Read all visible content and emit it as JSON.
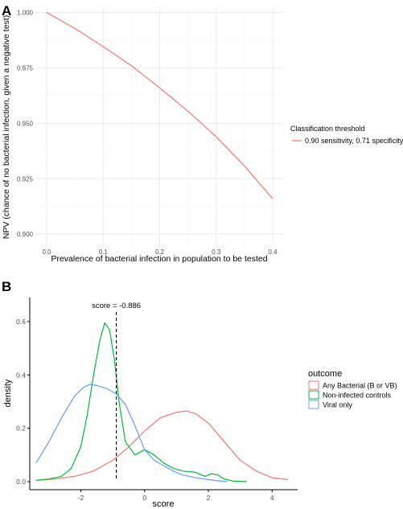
{
  "panels": {
    "a": {
      "tag": "A"
    },
    "b": {
      "tag": "B"
    }
  },
  "chart_data": [
    {
      "type": "line",
      "panel": "A",
      "xlabel": "Prevalence of bacterial infection in population to be tested",
      "ylabel": "NPV (chance of no bacterial infection, given a negative test)",
      "xlim": [
        -0.02,
        0.42
      ],
      "ylim": [
        0.895,
        1.002
      ],
      "x_ticks": [
        0.0,
        0.1,
        0.2,
        0.3,
        0.4
      ],
      "x_tick_labels": [
        "0.0",
        "0.1",
        "0.2",
        "0.3",
        "0.4"
      ],
      "y_ticks": [
        0.9,
        0.925,
        0.95,
        0.975,
        1.0
      ],
      "y_tick_labels": [
        "0.900",
        "0.925",
        "0.950",
        "0.975",
        "1.000"
      ],
      "grid": true,
      "legend_position": "right",
      "legend_title": "Classification threshold",
      "series": [
        {
          "name": "0.90  sensitivity,  0.71  specificity",
          "color": "#f8766d",
          "x": [
            0.0,
            0.05,
            0.1,
            0.15,
            0.2,
            0.25,
            0.3,
            0.35,
            0.4
          ],
          "y": [
            1.0,
            0.9928,
            0.9846,
            0.976,
            0.966,
            0.9555,
            0.944,
            0.9308,
            0.916
          ]
        }
      ]
    },
    {
      "type": "line",
      "panel": "B",
      "xlabel": "score",
      "ylabel": "density",
      "xlim": [
        -3.6,
        4.8
      ],
      "ylim": [
        -0.03,
        0.69
      ],
      "x_ticks": [
        -2,
        0,
        2,
        4
      ],
      "x_tick_labels": [
        "-2",
        "0",
        "2",
        "4"
      ],
      "y_ticks": [
        0.0,
        0.2,
        0.4,
        0.6
      ],
      "y_tick_labels": [
        "0.0",
        "0.2",
        "0.4",
        "0.6"
      ],
      "grid": false,
      "legend_position": "right",
      "legend_title": "outcome",
      "annotation": {
        "text": "score = -0.886",
        "x": -0.886
      },
      "series": [
        {
          "name": "Any Bacterial (B or VB)",
          "color": "#f8766d",
          "x": [
            -3.4,
            -2.8,
            -2.2,
            -1.6,
            -1.0,
            -0.5,
            0.0,
            0.5,
            1.0,
            1.3,
            1.6,
            2.0,
            2.5,
            3.0,
            3.5,
            4.0,
            4.5
          ],
          "y": [
            0.005,
            0.01,
            0.02,
            0.04,
            0.08,
            0.13,
            0.19,
            0.24,
            0.26,
            0.265,
            0.255,
            0.22,
            0.15,
            0.08,
            0.04,
            0.015,
            0.008
          ]
        },
        {
          "name": "Non-infected controls",
          "color": "#00ba38",
          "x": [
            -3.4,
            -3.0,
            -2.6,
            -2.3,
            -2.0,
            -1.8,
            -1.6,
            -1.4,
            -1.25,
            -1.1,
            -0.95,
            -0.8,
            -0.6,
            -0.3,
            0.0,
            0.3,
            0.6,
            0.9,
            1.2,
            1.6,
            1.9,
            2.1,
            2.3,
            2.5,
            2.8,
            3.2
          ],
          "y": [
            0.005,
            0.01,
            0.02,
            0.05,
            0.13,
            0.25,
            0.4,
            0.53,
            0.595,
            0.57,
            0.46,
            0.3,
            0.15,
            0.1,
            0.12,
            0.1,
            0.07,
            0.05,
            0.04,
            0.035,
            0.02,
            0.03,
            0.025,
            0.01,
            0.002,
            0.0
          ]
        },
        {
          "name": "Viral only",
          "color": "#619cff",
          "x": [
            -3.4,
            -3.0,
            -2.6,
            -2.2,
            -1.9,
            -1.7,
            -1.5,
            -1.2,
            -0.9,
            -0.6,
            -0.3,
            0.0,
            0.3,
            0.6,
            0.9,
            1.2,
            1.6,
            2.0,
            2.3,
            2.6
          ],
          "y": [
            0.07,
            0.15,
            0.24,
            0.32,
            0.355,
            0.365,
            0.36,
            0.35,
            0.33,
            0.29,
            0.21,
            0.12,
            0.08,
            0.06,
            0.04,
            0.025,
            0.015,
            0.008,
            0.003,
            0.0
          ]
        }
      ]
    }
  ]
}
